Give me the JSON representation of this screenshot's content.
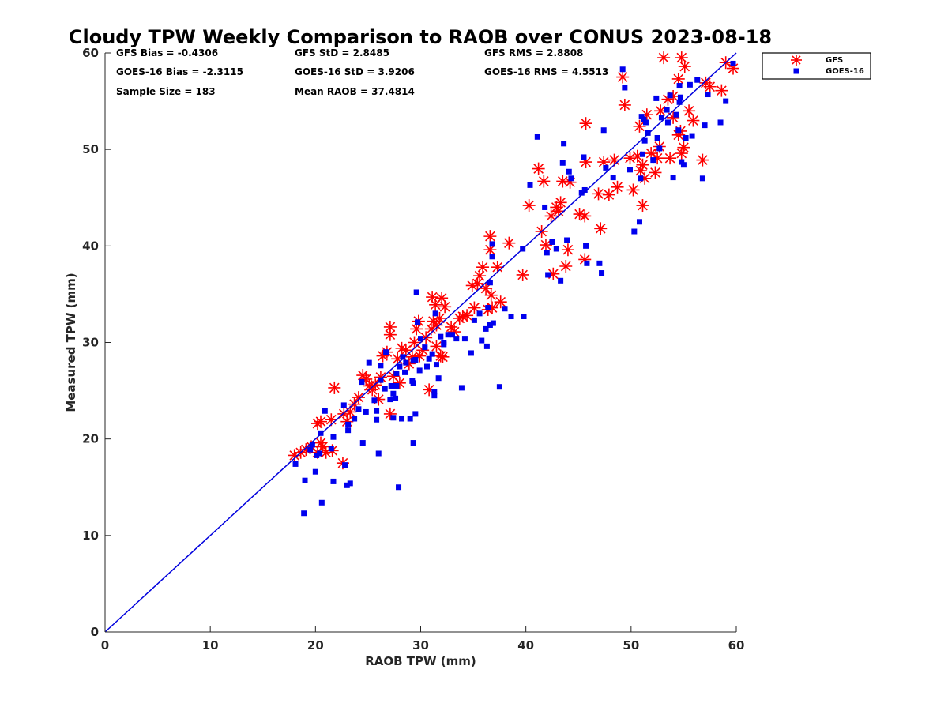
{
  "chart_data": {
    "type": "scatter",
    "title": "Cloudy TPW Weekly Comparison to RAOB over CONUS 2023-08-18",
    "xlabel": "RAOB TPW (mm)",
    "ylabel": "Measured TPW (mm)",
    "xlim": [
      0,
      60
    ],
    "ylim": [
      0,
      60
    ],
    "xticks": [
      "0",
      "10",
      "20",
      "30",
      "40",
      "50",
      "60"
    ],
    "yticks": [
      "0",
      "10",
      "20",
      "30",
      "40",
      "50",
      "60"
    ],
    "grid": false,
    "legend": "outside-top-right",
    "reference_line": {
      "x": [
        0,
        60
      ],
      "y": [
        0,
        60
      ],
      "color": "#0000dd"
    },
    "stats": [
      [
        "GFS Bias = -0.4306",
        "GFS StD = 2.8485",
        "GFS RMS = 2.8808"
      ],
      [
        "GOES-16 Bias = -2.3115",
        "GOES-16 StD = 3.9206",
        "GOES-16 RMS = 4.5513"
      ],
      [
        "Sample Size = 183",
        "Mean RAOB = 37.4814",
        ""
      ]
    ],
    "series": [
      {
        "name": "GFS",
        "marker": "asterisk",
        "color": "#ff0000",
        "points": [
          [
            18.0,
            18.3
          ],
          [
            18.6,
            18.6
          ],
          [
            19.1,
            18.9
          ],
          [
            19.6,
            19.2
          ],
          [
            20.2,
            18.6
          ],
          [
            20.5,
            19.6
          ],
          [
            20.7,
            19.2
          ],
          [
            21.0,
            18.6
          ],
          [
            21.6,
            18.8
          ],
          [
            20.2,
            21.6
          ],
          [
            20.5,
            21.8
          ],
          [
            21.5,
            22.0
          ],
          [
            21.8,
            25.3
          ],
          [
            22.6,
            17.5
          ],
          [
            22.7,
            22.6
          ],
          [
            23.0,
            21.8
          ],
          [
            23.3,
            22.8
          ],
          [
            23.7,
            23.6
          ],
          [
            24.1,
            24.3
          ],
          [
            24.5,
            26.6
          ],
          [
            24.8,
            26.2
          ],
          [
            25.1,
            25.5
          ],
          [
            25.4,
            25.1
          ],
          [
            25.7,
            25.6
          ],
          [
            26.0,
            24.1
          ],
          [
            26.2,
            26.4
          ],
          [
            26.4,
            28.6
          ],
          [
            26.8,
            29.0
          ],
          [
            27.1,
            31.6
          ],
          [
            27.1,
            30.8
          ],
          [
            27.1,
            22.6
          ],
          [
            27.4,
            26.5
          ],
          [
            27.8,
            28.3
          ],
          [
            28.0,
            25.8
          ],
          [
            28.2,
            29.4
          ],
          [
            28.6,
            29.2
          ],
          [
            28.9,
            27.8
          ],
          [
            29.2,
            28.5
          ],
          [
            29.4,
            30.0
          ],
          [
            29.6,
            31.4
          ],
          [
            29.8,
            32.2
          ],
          [
            29.9,
            28.6
          ],
          [
            30.2,
            29.2
          ],
          [
            30.5,
            30.5
          ],
          [
            30.8,
            25.1
          ],
          [
            31.0,
            31.4
          ],
          [
            31.1,
            34.7
          ],
          [
            31.2,
            32.2
          ],
          [
            31.4,
            33.9
          ],
          [
            31.5,
            31.8
          ],
          [
            31.5,
            29.6
          ],
          [
            31.8,
            32.5
          ],
          [
            32.0,
            34.6
          ],
          [
            31.9,
            28.6
          ],
          [
            32.1,
            28.5
          ],
          [
            32.3,
            33.7
          ],
          [
            32.9,
            31.6
          ],
          [
            33.2,
            31.1
          ],
          [
            33.7,
            32.5
          ],
          [
            34.0,
            32.7
          ],
          [
            34.4,
            32.8
          ],
          [
            34.9,
            35.9
          ],
          [
            35.1,
            33.6
          ],
          [
            35.4,
            36.1
          ],
          [
            35.6,
            36.9
          ],
          [
            35.9,
            37.8
          ],
          [
            36.2,
            35.6
          ],
          [
            36.4,
            33.4
          ],
          [
            36.6,
            41.0
          ],
          [
            36.6,
            39.6
          ],
          [
            36.7,
            34.9
          ],
          [
            36.8,
            33.6
          ],
          [
            37.3,
            37.8
          ],
          [
            37.6,
            34.2
          ],
          [
            38.4,
            40.3
          ],
          [
            39.7,
            37.0
          ],
          [
            40.3,
            44.2
          ],
          [
            41.2,
            48.0
          ],
          [
            41.5,
            41.5
          ],
          [
            41.7,
            46.7
          ],
          [
            41.9,
            40.1
          ],
          [
            42.4,
            43.1
          ],
          [
            42.6,
            37.1
          ],
          [
            42.9,
            44.0
          ],
          [
            43.1,
            43.6
          ],
          [
            43.3,
            44.5
          ],
          [
            43.5,
            46.7
          ],
          [
            43.8,
            37.9
          ],
          [
            44.2,
            46.6
          ],
          [
            44.0,
            39.6
          ],
          [
            45.1,
            43.3
          ],
          [
            45.6,
            43.1
          ],
          [
            45.6,
            38.6
          ],
          [
            45.7,
            48.7
          ],
          [
            45.7,
            52.7
          ],
          [
            46.9,
            45.4
          ],
          [
            47.1,
            41.8
          ],
          [
            47.4,
            48.7
          ],
          [
            47.9,
            45.3
          ],
          [
            48.4,
            48.9
          ],
          [
            48.7,
            46.1
          ],
          [
            49.2,
            57.5
          ],
          [
            49.4,
            54.6
          ],
          [
            49.9,
            49.1
          ],
          [
            50.2,
            45.8
          ],
          [
            50.6,
            49.3
          ],
          [
            50.8,
            52.4
          ],
          [
            50.9,
            47.8
          ],
          [
            51.1,
            48.4
          ],
          [
            51.3,
            47.0
          ],
          [
            51.1,
            44.2
          ],
          [
            51.5,
            53.6
          ],
          [
            51.9,
            49.6
          ],
          [
            52.3,
            47.6
          ],
          [
            52.5,
            49.1
          ],
          [
            52.7,
            50.3
          ],
          [
            52.8,
            54.0
          ],
          [
            53.1,
            59.5
          ],
          [
            53.5,
            55.2
          ],
          [
            53.7,
            49.1
          ],
          [
            54.0,
            53.3
          ],
          [
            54.0,
            55.5
          ],
          [
            54.5,
            57.3
          ],
          [
            54.5,
            51.5
          ],
          [
            54.7,
            51.9
          ],
          [
            54.8,
            49.6
          ],
          [
            54.8,
            59.5
          ],
          [
            55.0,
            50.2
          ],
          [
            55.1,
            58.6
          ],
          [
            55.5,
            54.0
          ],
          [
            55.9,
            53.0
          ],
          [
            56.8,
            48.9
          ],
          [
            57.1,
            56.9
          ],
          [
            57.5,
            56.5
          ],
          [
            58.6,
            56.1
          ],
          [
            59.0,
            59.0
          ],
          [
            59.7,
            58.4
          ]
        ]
      },
      {
        "name": "GOES-16",
        "marker": "square",
        "color": "#0000ee",
        "points": [
          [
            18.1,
            17.4
          ],
          [
            18.9,
            12.3
          ],
          [
            19.0,
            15.7
          ],
          [
            19.5,
            18.9
          ],
          [
            19.7,
            19.4
          ],
          [
            20.0,
            16.6
          ],
          [
            20.1,
            18.3
          ],
          [
            20.4,
            18.5
          ],
          [
            20.5,
            20.6
          ],
          [
            20.6,
            13.4
          ],
          [
            20.9,
            22.9
          ],
          [
            21.5,
            19.0
          ],
          [
            21.7,
            15.6
          ],
          [
            21.7,
            20.2
          ],
          [
            22.7,
            23.5
          ],
          [
            22.8,
            17.3
          ],
          [
            23.0,
            15.2
          ],
          [
            23.1,
            21.5
          ],
          [
            23.1,
            20.9
          ],
          [
            23.3,
            15.4
          ],
          [
            23.7,
            22.1
          ],
          [
            24.1,
            23.1
          ],
          [
            24.4,
            25.9
          ],
          [
            24.5,
            19.6
          ],
          [
            24.8,
            22.8
          ],
          [
            25.1,
            27.9
          ],
          [
            25.6,
            24.0
          ],
          [
            25.8,
            22.0
          ],
          [
            25.8,
            22.9
          ],
          [
            26.0,
            18.5
          ],
          [
            26.2,
            27.6
          ],
          [
            26.2,
            26.1
          ],
          [
            26.6,
            25.2
          ],
          [
            26.7,
            29.0
          ],
          [
            27.1,
            24.1
          ],
          [
            27.2,
            25.5
          ],
          [
            27.4,
            22.2
          ],
          [
            27.4,
            24.7
          ],
          [
            27.6,
            24.2
          ],
          [
            27.7,
            26.8
          ],
          [
            27.7,
            25.5
          ],
          [
            27.9,
            15.0
          ],
          [
            28.0,
            27.5
          ],
          [
            28.2,
            22.1
          ],
          [
            28.3,
            28.5
          ],
          [
            28.5,
            26.9
          ],
          [
            28.6,
            27.9
          ],
          [
            29.0,
            22.1
          ],
          [
            29.2,
            26.0
          ],
          [
            29.3,
            28.1
          ],
          [
            29.3,
            25.8
          ],
          [
            29.3,
            19.6
          ],
          [
            29.5,
            22.6
          ],
          [
            29.6,
            35.2
          ],
          [
            29.5,
            28.2
          ],
          [
            29.7,
            32.1
          ],
          [
            29.9,
            27.1
          ],
          [
            30.0,
            30.4
          ],
          [
            30.4,
            29.5
          ],
          [
            30.6,
            27.5
          ],
          [
            30.8,
            28.3
          ],
          [
            31.1,
            28.8
          ],
          [
            31.3,
            24.9
          ],
          [
            31.3,
            24.5
          ],
          [
            31.5,
            27.7
          ],
          [
            31.7,
            26.3
          ],
          [
            31.4,
            33.0
          ],
          [
            31.9,
            30.6
          ],
          [
            32.2,
            30.0
          ],
          [
            32.2,
            29.8
          ],
          [
            32.6,
            30.8
          ],
          [
            33.0,
            30.8
          ],
          [
            33.4,
            30.4
          ],
          [
            33.9,
            25.3
          ],
          [
            34.2,
            30.4
          ],
          [
            34.8,
            28.9
          ],
          [
            35.1,
            32.3
          ],
          [
            35.6,
            33.0
          ],
          [
            35.8,
            30.2
          ],
          [
            36.2,
            31.4
          ],
          [
            36.3,
            29.6
          ],
          [
            36.4,
            33.6
          ],
          [
            36.6,
            36.2
          ],
          [
            36.6,
            31.8
          ],
          [
            36.8,
            38.9
          ],
          [
            36.8,
            40.2
          ],
          [
            36.9,
            32.0
          ],
          [
            37.5,
            25.4
          ],
          [
            38.0,
            33.5
          ],
          [
            38.6,
            32.7
          ],
          [
            39.7,
            39.7
          ],
          [
            39.8,
            32.7
          ],
          [
            40.4,
            46.3
          ],
          [
            41.1,
            51.3
          ],
          [
            41.8,
            44.0
          ],
          [
            42.0,
            39.3
          ],
          [
            42.1,
            37.0
          ],
          [
            42.5,
            40.4
          ],
          [
            42.9,
            39.7
          ],
          [
            43.3,
            36.4
          ],
          [
            43.5,
            48.6
          ],
          [
            43.6,
            50.6
          ],
          [
            43.9,
            40.6
          ],
          [
            44.1,
            47.7
          ],
          [
            44.3,
            47.0
          ],
          [
            45.3,
            45.5
          ],
          [
            45.5,
            49.2
          ],
          [
            45.6,
            45.8
          ],
          [
            45.7,
            40.0
          ],
          [
            45.8,
            38.2
          ],
          [
            47.0,
            38.2
          ],
          [
            47.2,
            37.2
          ],
          [
            47.4,
            52.0
          ],
          [
            47.6,
            48.1
          ],
          [
            48.3,
            47.1
          ],
          [
            49.2,
            58.3
          ],
          [
            49.4,
            56.4
          ],
          [
            49.9,
            47.9
          ],
          [
            50.3,
            41.5
          ],
          [
            50.8,
            42.5
          ],
          [
            50.9,
            47.0
          ],
          [
            51.0,
            53.4
          ],
          [
            51.2,
            53.1
          ],
          [
            51.3,
            50.9
          ],
          [
            51.4,
            52.8
          ],
          [
            51.6,
            51.7
          ],
          [
            52.1,
            48.9
          ],
          [
            52.4,
            55.3
          ],
          [
            52.5,
            51.2
          ],
          [
            52.7,
            50.1
          ],
          [
            52.9,
            53.3
          ],
          [
            53.4,
            54.1
          ],
          [
            53.5,
            52.8
          ],
          [
            53.7,
            55.6
          ],
          [
            54.0,
            47.1
          ],
          [
            54.3,
            53.6
          ],
          [
            54.5,
            52.0
          ],
          [
            54.6,
            56.6
          ],
          [
            54.7,
            55.4
          ],
          [
            54.8,
            48.7
          ],
          [
            55.0,
            48.4
          ],
          [
            55.2,
            51.2
          ],
          [
            55.6,
            56.7
          ],
          [
            56.3,
            57.2
          ],
          [
            57.0,
            52.5
          ],
          [
            57.3,
            55.7
          ],
          [
            58.5,
            52.8
          ],
          [
            59.0,
            55.0
          ],
          [
            59.7,
            58.9
          ],
          [
            56.8,
            47.0
          ],
          [
            55.8,
            51.4
          ],
          [
            54.6,
            54.9
          ],
          [
            51.1,
            49.5
          ]
        ]
      }
    ]
  }
}
